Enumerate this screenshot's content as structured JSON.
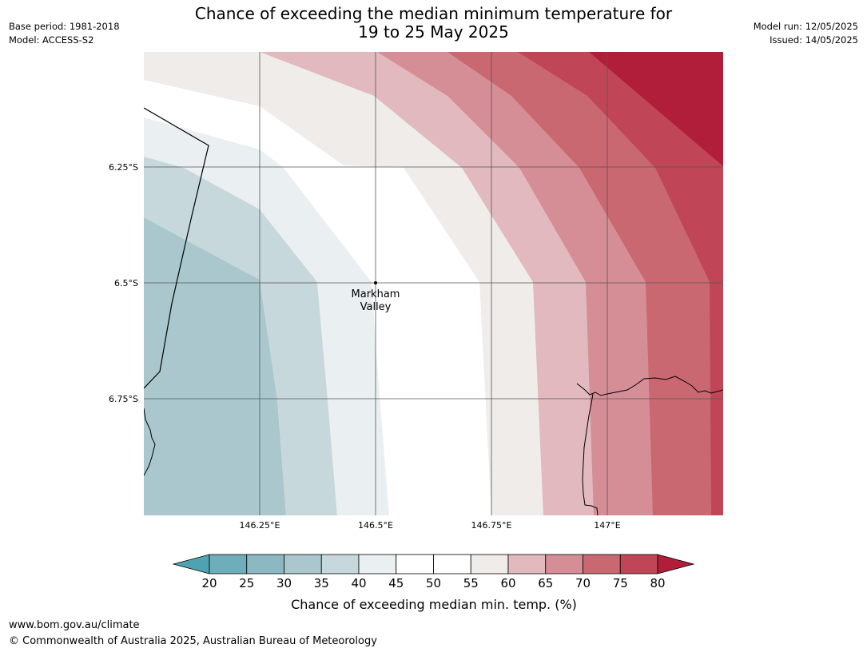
{
  "title": {
    "line1": "Chance of exceeding the median minimum temperature for",
    "line2": "19 to 25 May 2025"
  },
  "meta_left": {
    "base_period": "Base period: 1981-2018",
    "model": "Model: ACCESS-S2"
  },
  "meta_right": {
    "model_run": "Model run: 12/05/2025",
    "issued": "Issued: 14/05/2025"
  },
  "map": {
    "lon_ticks": [
      "146.25°E",
      "146.5°E",
      "146.75°E",
      "147°E"
    ],
    "lat_ticks": [
      "6.25°S",
      "6.5°S",
      "6.75°S"
    ],
    "location": {
      "label_line1": "Markham",
      "label_line2": "Valley",
      "lon": 146.5,
      "lat": -6.5
    }
  },
  "colorbar": {
    "label": "Chance of exceeding median min. temp. (%)",
    "ticks": [
      "20",
      "25",
      "30",
      "35",
      "40",
      "45",
      "50",
      "55",
      "60",
      "65",
      "70",
      "75",
      "80"
    ],
    "colors": {
      "below_20": "#4da3b2",
      "20_25": "#6eaebb",
      "25_30": "#8cb8c3",
      "30_35": "#a9c7cc",
      "35_40": "#c7d8dc",
      "40_45": "#eaeff1",
      "45_50": "#ffffff",
      "50_55": "#ffffff",
      "55_60": "#efecea",
      "60_65": "#e1b9be",
      "65_70": "#d58e96",
      "70_75": "#ca6872",
      "75_80": "#c04657",
      "above_80": "#b11e3a"
    }
  },
  "footer": {
    "url": "www.bom.gov.au/climate",
    "copyright": "© Commonwealth of Australia 2025, Australian Bureau of Meteorology"
  }
}
